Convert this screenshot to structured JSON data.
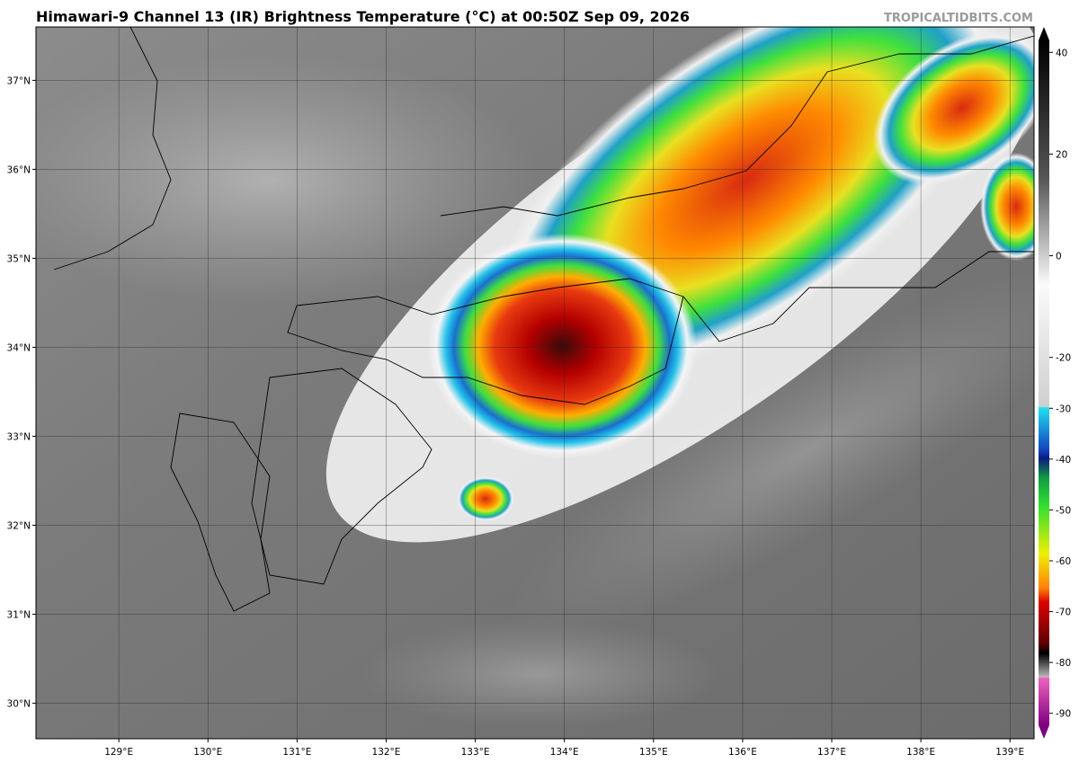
{
  "header": {
    "title": "Himawari-9 Channel 13 (IR) Brightness Temperature (°C) at 00:50Z Sep 09, 2026",
    "watermark": "TROPICALTIDBITS.COM"
  },
  "map": {
    "xlim": [
      128.07,
      139.27
    ],
    "ylim": [
      29.6,
      37.6
    ],
    "lon_ticks": [
      {
        "value": 129,
        "label": "129°E"
      },
      {
        "value": 130,
        "label": "130°E"
      },
      {
        "value": 131,
        "label": "131°E"
      },
      {
        "value": 132,
        "label": "132°E"
      },
      {
        "value": 133,
        "label": "133°E"
      },
      {
        "value": 134,
        "label": "134°E"
      },
      {
        "value": 135,
        "label": "135°E"
      },
      {
        "value": 136,
        "label": "136°E"
      },
      {
        "value": 137,
        "label": "137°E"
      },
      {
        "value": 138,
        "label": "138°E"
      },
      {
        "value": 139,
        "label": "139°E"
      }
    ],
    "lat_ticks": [
      {
        "value": 30,
        "label": "30°N"
      },
      {
        "value": 31,
        "label": "31°N"
      },
      {
        "value": 32,
        "label": "32°N"
      },
      {
        "value": 33,
        "label": "33°N"
      },
      {
        "value": 34,
        "label": "34°N"
      },
      {
        "value": 35,
        "label": "35°N"
      },
      {
        "value": 36,
        "label": "36°N"
      },
      {
        "value": 37,
        "label": "37°N"
      }
    ]
  },
  "colorbar": {
    "lim": [
      -95,
      45
    ],
    "ticks": [
      40,
      20,
      0,
      -20,
      -30,
      -40,
      -50,
      -60,
      -70,
      -80,
      -90
    ]
  }
}
